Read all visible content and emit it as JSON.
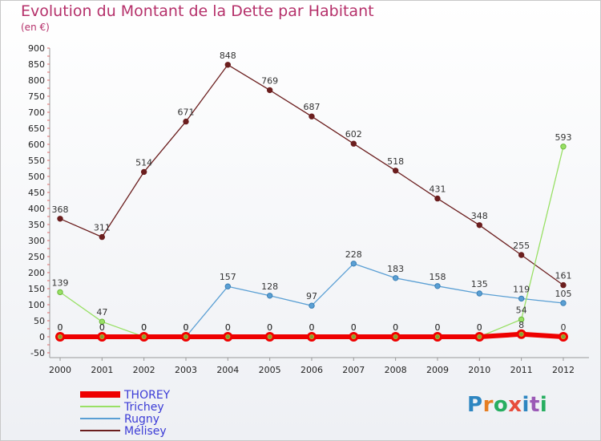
{
  "title": "Evolution du Montant de la Dette par Habitant",
  "subtitle": "(en €)",
  "logo": "Proxiti",
  "colors": {
    "title": "#b5306a",
    "THOREY": "#ee0000",
    "Rugny": "#5a9fd4",
    "Trichey": "#99e066",
    "Mélisey": "#6b1e1e"
  },
  "chart_data": {
    "type": "line",
    "title": "Evolution du Montant de la Dette par Habitant",
    "subtitle": "(en €)",
    "xlabel": "",
    "ylabel": "",
    "x": [
      "2000",
      "2001",
      "2002",
      "2003",
      "2004",
      "2005",
      "2006",
      "2007",
      "2008",
      "2009",
      "2010",
      "2011",
      "2012"
    ],
    "ylim": [
      -50,
      900
    ],
    "yticks": [
      -50,
      0,
      50,
      100,
      150,
      200,
      250,
      300,
      350,
      400,
      450,
      500,
      550,
      600,
      650,
      700,
      750,
      800,
      850,
      900
    ],
    "grid": false,
    "legend": "bottom-left",
    "series": [
      {
        "name": "Mélisey",
        "values": [
          368,
          311,
          514,
          671,
          848,
          769,
          687,
          602,
          518,
          431,
          348,
          255,
          161
        ],
        "labels": [
          "368",
          "311",
          "514",
          "671",
          "848",
          "769",
          "687",
          "602",
          "518",
          "431",
          "348",
          "255",
          "161"
        ]
      },
      {
        "name": "Rugny",
        "values": [
          0,
          0,
          0,
          0,
          157,
          128,
          97,
          228,
          183,
          158,
          135,
          119,
          105
        ],
        "labels": [
          "0",
          "0",
          "0",
          "0",
          "157",
          "128",
          "97",
          "228",
          "183",
          "158",
          "135",
          "119",
          "105"
        ]
      },
      {
        "name": "Trichey",
        "values": [
          139,
          47,
          0,
          0,
          0,
          0,
          0,
          0,
          0,
          0,
          0,
          54,
          593
        ],
        "labels": [
          "139",
          "47",
          "0",
          "0",
          "0",
          "0",
          "0",
          "0",
          "0",
          "0",
          "0",
          "54",
          "593"
        ]
      },
      {
        "name": "THOREY",
        "values": [
          0,
          0,
          0,
          0,
          0,
          0,
          0,
          0,
          0,
          0,
          0,
          8,
          0
        ],
        "labels": [
          "0",
          "0",
          "0",
          "0",
          "0",
          "0",
          "0",
          "0",
          "0",
          "0",
          "0",
          "8",
          "0"
        ]
      }
    ]
  }
}
